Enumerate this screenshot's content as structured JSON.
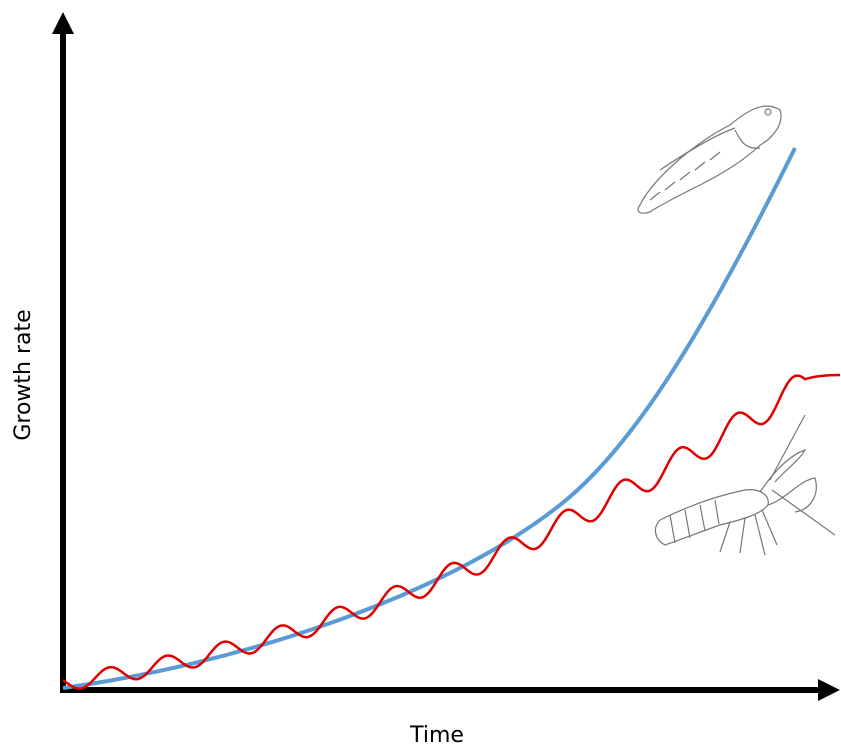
{
  "axes": {
    "y_label": "Growth rate",
    "x_label": "Time"
  }
}
